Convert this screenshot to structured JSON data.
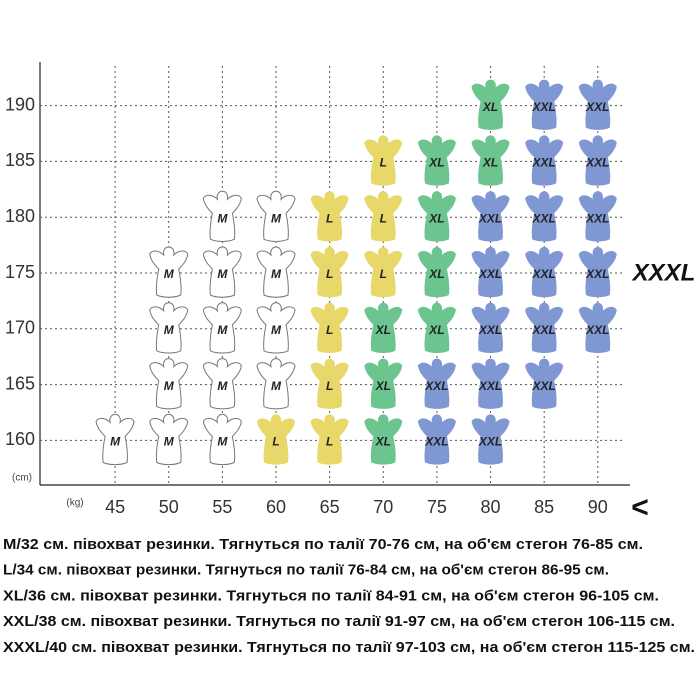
{
  "chart_data": {
    "type": "size-grid",
    "y_label": "(cm)",
    "x_label": "(kg)",
    "xlim": [
      38,
      93
    ],
    "ylim": [
      156,
      194
    ],
    "xticks": [
      45,
      50,
      55,
      60,
      65,
      70,
      75,
      80,
      85,
      90
    ],
    "yticks": [
      160,
      165,
      170,
      175,
      180,
      185,
      190
    ],
    "grid": true,
    "series": [
      {
        "name": "M",
        "color": "#ffffff",
        "points": [
          [
            45,
            160
          ],
          [
            50,
            160
          ],
          [
            50,
            165
          ],
          [
            50,
            170
          ],
          [
            50,
            175
          ],
          [
            55,
            160
          ],
          [
            55,
            165
          ],
          [
            55,
            170
          ],
          [
            55,
            175
          ],
          [
            55,
            180
          ],
          [
            60,
            165
          ],
          [
            60,
            170
          ],
          [
            60,
            175
          ],
          [
            60,
            180
          ]
        ]
      },
      {
        "name": "L",
        "color": "#e8d86a",
        "points": [
          [
            60,
            160
          ],
          [
            65,
            160
          ],
          [
            65,
            165
          ],
          [
            65,
            170
          ],
          [
            65,
            175
          ],
          [
            65,
            180
          ],
          [
            70,
            175
          ],
          [
            70,
            180
          ],
          [
            70,
            185
          ]
        ]
      },
      {
        "name": "XL",
        "color": "#6cc48e",
        "points": [
          [
            70,
            160
          ],
          [
            70,
            165
          ],
          [
            70,
            170
          ],
          [
            75,
            170
          ],
          [
            75,
            175
          ],
          [
            75,
            180
          ],
          [
            75,
            185
          ],
          [
            80,
            185
          ],
          [
            80,
            190
          ]
        ]
      },
      {
        "name": "XXL",
        "color": "#7f98d4",
        "points": [
          [
            75,
            160
          ],
          [
            75,
            165
          ],
          [
            80,
            160
          ],
          [
            80,
            165
          ],
          [
            80,
            170
          ],
          [
            80,
            175
          ],
          [
            80,
            180
          ],
          [
            85,
            165
          ],
          [
            85,
            170
          ],
          [
            85,
            175
          ],
          [
            85,
            180
          ],
          [
            85,
            185
          ],
          [
            85,
            190
          ],
          [
            90,
            170
          ],
          [
            90,
            175
          ],
          [
            90,
            180
          ],
          [
            90,
            185
          ],
          [
            90,
            190
          ]
        ]
      }
    ],
    "annotations": [
      "XXXL",
      "<"
    ],
    "notes": [
      "M/32 см. півохват резинки. Тягнуться по талії 70-76 см, на об'єм стегон 76-85 см.",
      "L/34 см. півохват резинки. Тягнуться по талії 76-84 см, на об'єм стегон 86-95 см.",
      "XL/36 см. півохват резинки. Тягнуться по талії 84-91 см, на об'єм стегон 96-105 см.",
      "XXL/38 см. півохват резинки. Тягнуться по талії 91-97 см, на об'єм стегон 106-115 см.",
      "XXXL/40 см. півохват резинки. Тягнуться по талії 97-103 см, на об'єм стегон 115-125 см."
    ]
  }
}
